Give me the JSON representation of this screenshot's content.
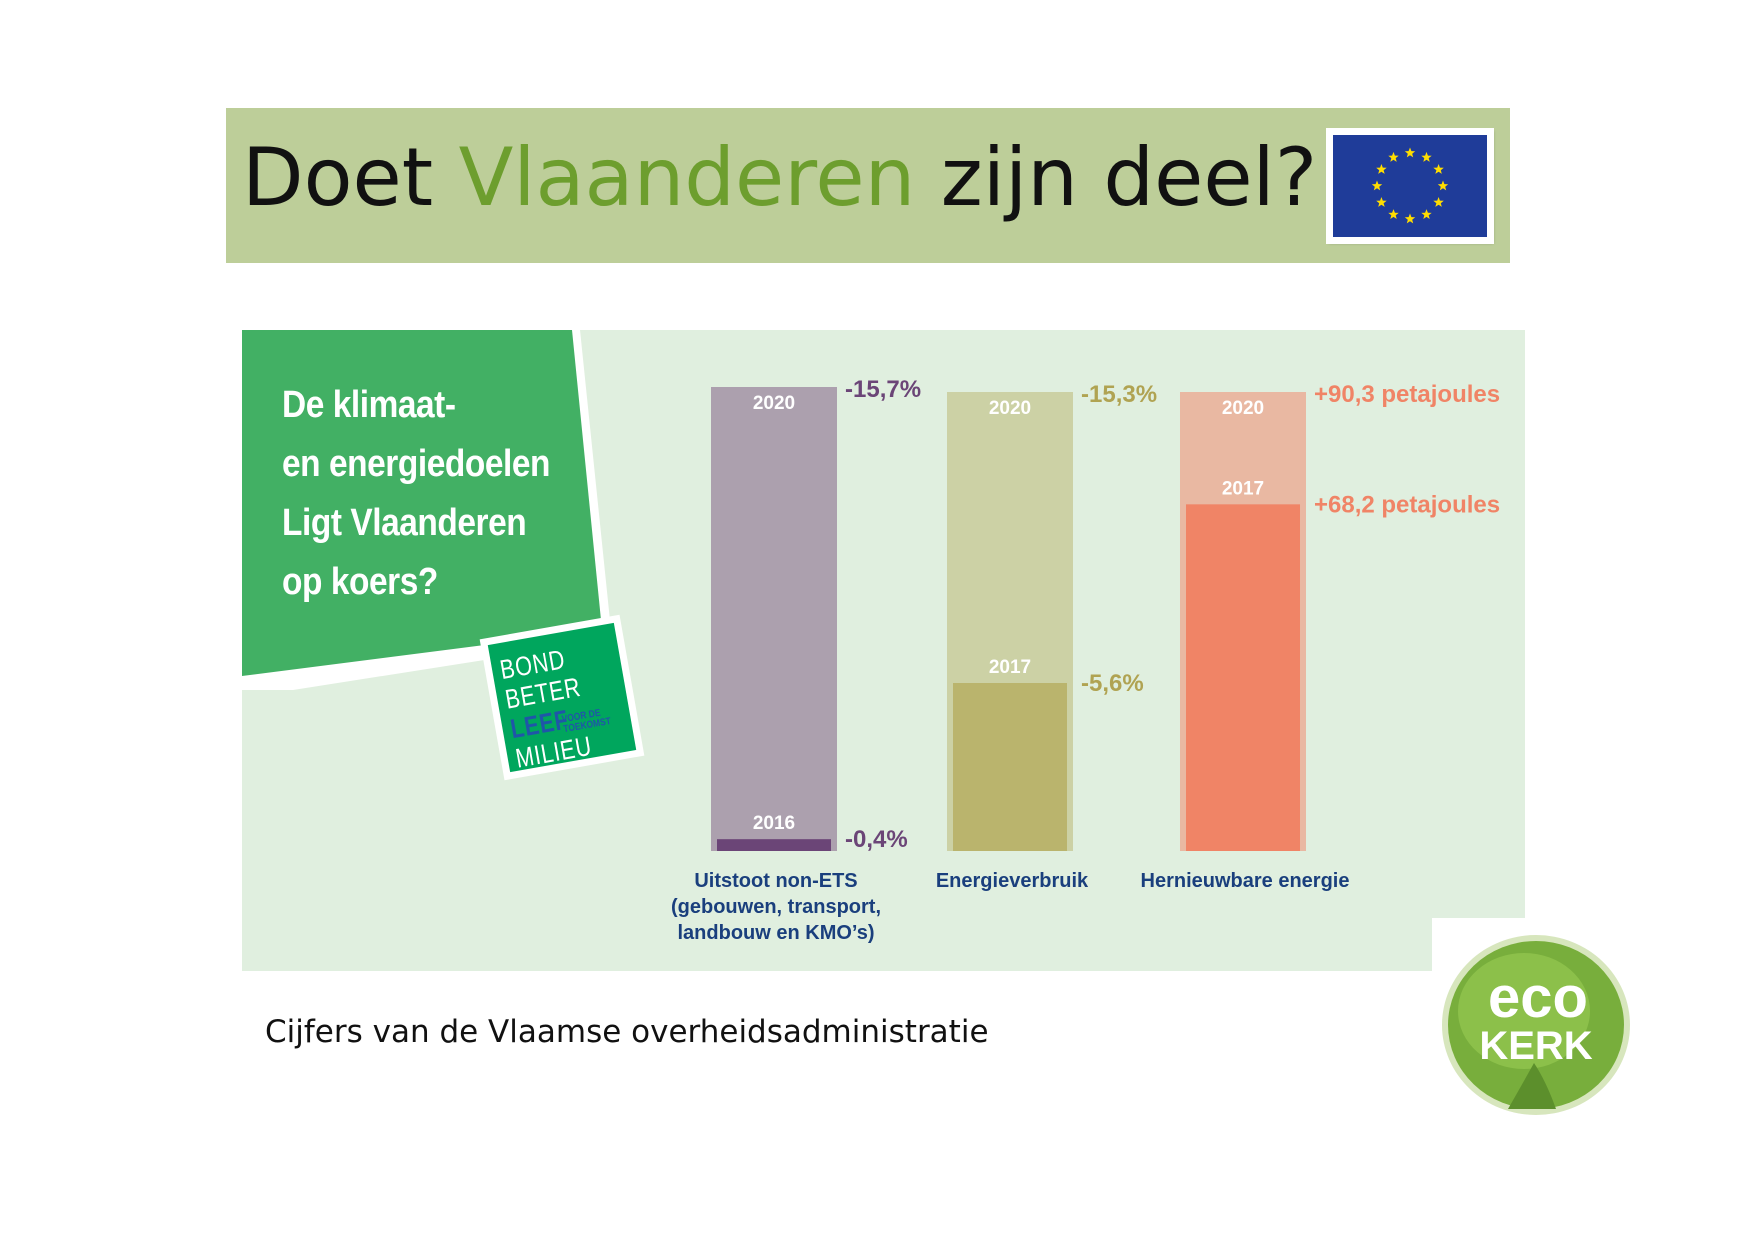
{
  "header": {
    "title_before": "Doet ",
    "title_highlight": "Vlaanderen",
    "title_after": " zijn deel?"
  },
  "infographic": {
    "question_lines": [
      "De klimaat-",
      "en energiedoelen",
      "Ligt Vlaanderen",
      "op koers?"
    ],
    "bbl_logo": {
      "words": [
        "BOND",
        "BETER",
        "LEEF",
        "MILIEU"
      ],
      "small": [
        "VOOR DE",
        "TOEKOMST"
      ]
    }
  },
  "chart_data": {
    "type": "bar",
    "categories": [
      [
        "Uitstoot non-ETS",
        "(gebouwen, transport,",
        "landbouw en KMO’s)"
      ],
      [
        "Energieverbruik"
      ],
      [
        "Hernieuwbare energie"
      ]
    ],
    "bars": [
      {
        "target": {
          "year": "2020",
          "label": "-15,7%",
          "value": -15.7
        },
        "actual": {
          "year": "2016",
          "label": "-0,4%",
          "value": -0.4
        },
        "colors": {
          "target": "#aca0ae",
          "actual": "#6b4577",
          "label": "#6b4577"
        }
      },
      {
        "target": {
          "year": "2020",
          "label": "-15,3%",
          "value": -15.3
        },
        "actual": {
          "year": "2017",
          "label": "-5,6%",
          "value": -5.6
        },
        "colors": {
          "target": "#ccd1a5",
          "actual": "#bab46d",
          "label": "#b0a352"
        }
      },
      {
        "target": {
          "year": "2020",
          "label": "+90,3 petajoules",
          "value": 90.3
        },
        "actual": {
          "year": "2017",
          "label": "+68,2 petajoules",
          "value": 68.2
        },
        "colors": {
          "target": "#e9b8a2",
          "actual": "#f08466",
          "label": "#f08466"
        }
      }
    ]
  },
  "footer": {
    "source": "Cijfers van de Vlaamse overheidsadministratie"
  },
  "eco_logo": {
    "line1": "eco",
    "line2": "KERK"
  },
  "colors": {
    "banner_bg": "#bdce99",
    "highlight": "#6d9e2e",
    "panel_bg": "#e0efdf",
    "green_shape": "#42b064",
    "category_text": "#1a3f7d",
    "eu_blue": "#1f3c99",
    "eu_star": "#ffdd00"
  }
}
